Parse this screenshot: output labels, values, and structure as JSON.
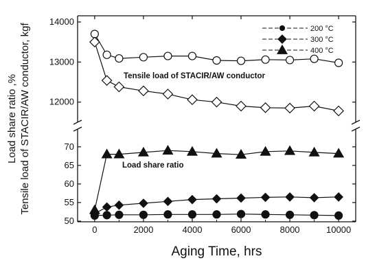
{
  "chart_data": {
    "type": "line",
    "xlabel": "Aging Time, hrs",
    "ylabel_outer": "Load share ratio ,%",
    "ylabel_inner": "Tensile load of STACIR/AW conductor, kgf",
    "x_ticks": [
      "0",
      "2000",
      "4000",
      "6000",
      "8000",
      "10000"
    ],
    "xlim": [
      -700,
      10700
    ],
    "upper_panel": {
      "ylim": [
        11600,
        14000
      ],
      "y_ticks": [
        "12000",
        "13000",
        "14000"
      ],
      "annotation": "Tensile load of STACIR/AW conductor",
      "series": [
        {
          "marker": "circle-open",
          "x": [
            0,
            500,
            1000,
            2000,
            3000,
            4000,
            5000,
            6000,
            7000,
            8000,
            9000,
            10000
          ],
          "values": [
            13700,
            13180,
            13090,
            13120,
            13150,
            13150,
            13040,
            13030,
            13060,
            13050,
            13080,
            12980
          ]
        },
        {
          "marker": "diamond-open",
          "x": [
            0,
            500,
            1000,
            2000,
            3000,
            4000,
            5000,
            6000,
            7000,
            8000,
            9000,
            10000
          ],
          "values": [
            13500,
            12540,
            12380,
            12280,
            12200,
            12060,
            12000,
            11900,
            11860,
            11850,
            11900,
            11780
          ]
        }
      ]
    },
    "lower_panel": {
      "ylim": [
        50,
        72
      ],
      "y_ticks": [
        "50",
        "55",
        "60",
        "65",
        "70"
      ],
      "annotation": "Load share ratio",
      "series": [
        {
          "name": "200 °C",
          "marker": "circle",
          "x": [
            0,
            500,
            1000,
            2000,
            3000,
            4000,
            5000,
            6000,
            7000,
            8000,
            9000,
            10000
          ],
          "values": [
            51.5,
            51.6,
            51.7,
            51.7,
            51.8,
            51.8,
            51.8,
            51.9,
            51.8,
            51.7,
            51.6,
            51.5
          ]
        },
        {
          "name": "300 °C",
          "marker": "diamond",
          "x": [
            0,
            500,
            1000,
            2000,
            3000,
            4000,
            5000,
            6000,
            7000,
            8000,
            9000,
            10000
          ],
          "values": [
            52.0,
            53.8,
            54.3,
            54.8,
            55.3,
            55.8,
            56.0,
            56.2,
            56.4,
            56.5,
            56.3,
            56.5
          ]
        },
        {
          "name": "400 °C",
          "marker": "triangle",
          "x": [
            0,
            500,
            1000,
            2000,
            3000,
            4000,
            5000,
            6000,
            7000,
            8000,
            9000,
            10000
          ],
          "values": [
            53.0,
            68.0,
            68.0,
            68.5,
            69.0,
            68.7,
            68.2,
            67.9,
            68.7,
            68.9,
            68.5,
            68.2
          ]
        }
      ]
    },
    "legend": {
      "position": "top-right"
    }
  }
}
